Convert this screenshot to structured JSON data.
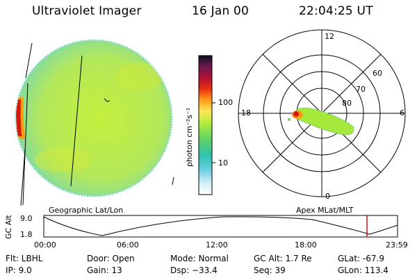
{
  "header": {
    "title": "Ultraviolet Imager",
    "date": "16 Jan 00",
    "time": "22:04:25 UT"
  },
  "colorbar": {
    "label": "photon cm⁻²s⁻¹",
    "ticks": [
      "100",
      "10"
    ]
  },
  "polar": {
    "mlt_labels": [
      "12",
      "18",
      "6",
      "0"
    ],
    "lat_labels": [
      "60",
      "70",
      "80"
    ]
  },
  "labels": {
    "left_projection": "Geographic Lat/Lon",
    "right_projection": "Apex MLat/MLT"
  },
  "timeline": {
    "y_axis_title": "GC Alt",
    "y_ticks": [
      "9.0",
      "1.8"
    ],
    "x_ticks": [
      "00:00",
      "06:00",
      "12:00",
      "18:00",
      "23:59"
    ],
    "marker_color": "#cc0000"
  },
  "status": {
    "row1": [
      "Flt: LBHL",
      "Door: Open",
      "Mode: Normal",
      "GC Alt: 1.7 Re",
      "GLat: -67.9"
    ],
    "row2": [
      "IP: 9.0",
      "Gain: 13",
      "Dsp: −33.4",
      "Seq: 39",
      "GLon: 113.4"
    ]
  },
  "colors": {
    "earth_fill": "#b9ea4a",
    "earth_edge": "#69d0b8",
    "aurora": "#cc1111",
    "oval": "#a6e83c"
  }
}
